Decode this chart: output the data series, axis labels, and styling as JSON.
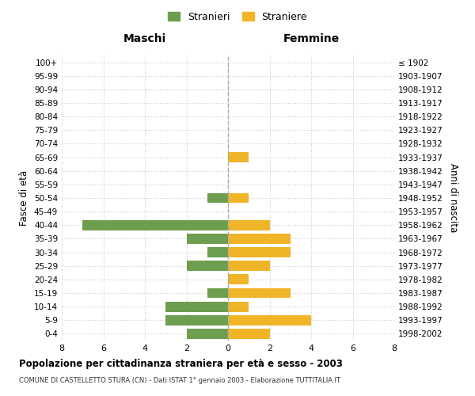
{
  "age_groups": [
    "0-4",
    "5-9",
    "10-14",
    "15-19",
    "20-24",
    "25-29",
    "30-34",
    "35-39",
    "40-44",
    "45-49",
    "50-54",
    "55-59",
    "60-64",
    "65-69",
    "70-74",
    "75-79",
    "80-84",
    "85-89",
    "90-94",
    "95-99",
    "100+"
  ],
  "birth_years": [
    "1998-2002",
    "1993-1997",
    "1988-1992",
    "1983-1987",
    "1978-1982",
    "1973-1977",
    "1968-1972",
    "1963-1967",
    "1958-1962",
    "1953-1957",
    "1948-1952",
    "1943-1947",
    "1938-1942",
    "1933-1937",
    "1928-1932",
    "1923-1927",
    "1918-1922",
    "1913-1917",
    "1908-1912",
    "1903-1907",
    "≤ 1902"
  ],
  "maschi": [
    2,
    3,
    3,
    1,
    0,
    2,
    1,
    2,
    7,
    0,
    1,
    0,
    0,
    0,
    0,
    0,
    0,
    0,
    0,
    0,
    0
  ],
  "femmine": [
    2,
    4,
    1,
    3,
    1,
    2,
    3,
    3,
    2,
    0,
    1,
    0,
    0,
    1,
    0,
    0,
    0,
    0,
    0,
    0,
    0
  ],
  "color_maschi": "#6d9e4f",
  "color_femmine": "#f0b429",
  "xlim": 8,
  "title": "Popolazione per cittadinanza straniera per età e sesso - 2003",
  "subtitle": "COMUNE DI CASTELLETTO STURA (CN) - Dati ISTAT 1° gennaio 2003 - Elaborazione TUTTITALIA.IT",
  "ylabel_left": "Fasce di età",
  "ylabel_right": "Anni di nascita",
  "xlabel_left": "Maschi",
  "xlabel_right": "Femmine",
  "legend_maschi": "Stranieri",
  "legend_femmine": "Straniere",
  "bg_color": "#ffffff",
  "grid_color": "#cccccc"
}
